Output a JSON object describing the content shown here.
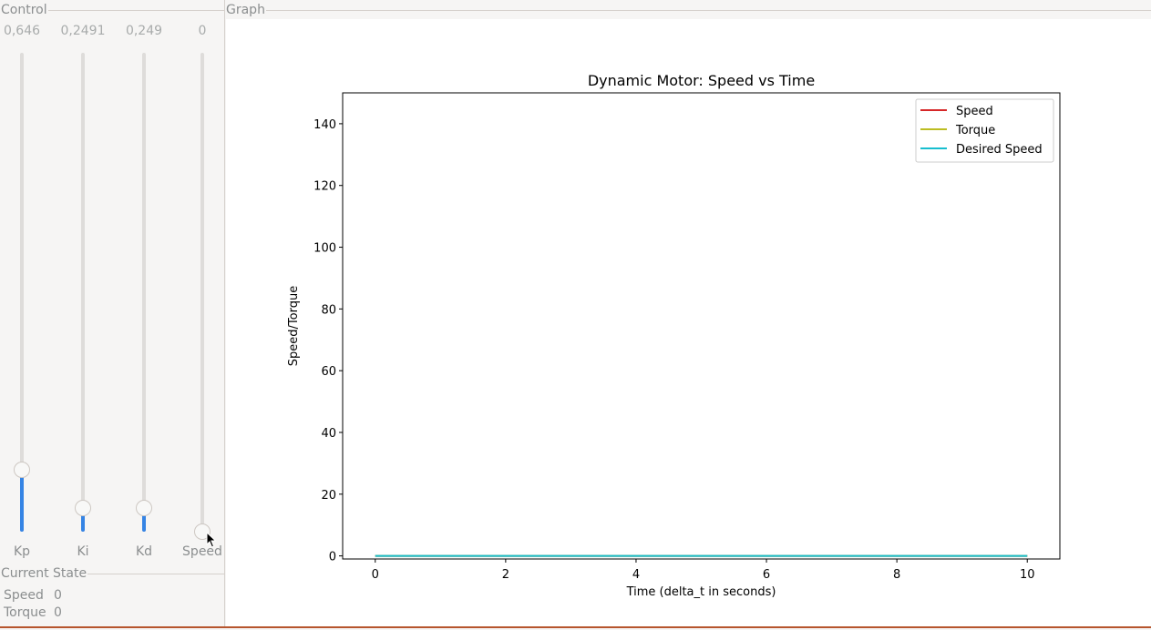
{
  "control": {
    "title": "Control",
    "sliders": [
      {
        "name": "Kp",
        "value_text": "0,646",
        "fraction": 0.13
      },
      {
        "name": "Ki",
        "value_text": "0,2491",
        "fraction": 0.05
      },
      {
        "name": "Kd",
        "value_text": "0,249",
        "fraction": 0.05
      },
      {
        "name": "Speed",
        "value_text": "0",
        "fraction": 0.0
      }
    ]
  },
  "current_state": {
    "title": "Current State",
    "speed_label": "Speed",
    "speed_value": "0",
    "torque_label": "Torque",
    "torque_value": "0"
  },
  "graph": {
    "title": "Graph"
  },
  "colors": {
    "accent": "#3584e4",
    "speed": "#d62728",
    "torque": "#bcbd22",
    "desired_speed": "#17becf"
  },
  "chart_data": {
    "type": "line",
    "title": "Dynamic Motor: Speed vs Time",
    "xlabel": "Time (delta_t in seconds)",
    "ylabel": "Speed/Torque",
    "xlim": [
      -0.5,
      10.5
    ],
    "ylim": [
      -1,
      150
    ],
    "xticks": [
      0,
      2,
      4,
      6,
      8,
      10
    ],
    "yticks": [
      0,
      20,
      40,
      60,
      80,
      100,
      120,
      140
    ],
    "legend_position": "top-right",
    "series": [
      {
        "name": "Speed",
        "color": "#d62728",
        "x": [
          0,
          10
        ],
        "y": [
          0,
          0
        ]
      },
      {
        "name": "Torque",
        "color": "#bcbd22",
        "x": [
          0,
          10
        ],
        "y": [
          0,
          0
        ]
      },
      {
        "name": "Desired Speed",
        "color": "#17becf",
        "x": [
          0,
          10
        ],
        "y": [
          0,
          0
        ]
      }
    ]
  }
}
